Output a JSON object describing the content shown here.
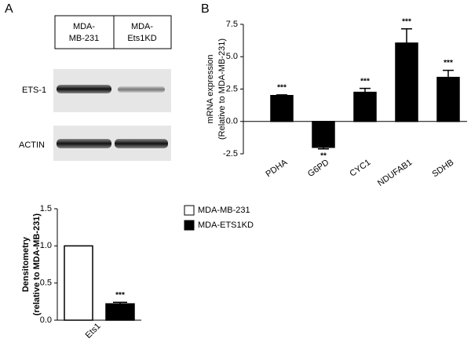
{
  "panel_a": {
    "label": "A",
    "blot": {
      "columns": [
        [
          "MDA-",
          "MB-231"
        ],
        [
          "MDA-",
          "Ets1KD"
        ]
      ],
      "rows": [
        "ETS-1",
        "ACTIN"
      ]
    }
  },
  "panel_b": {
    "label": "B"
  },
  "chart_data": [
    {
      "type": "bar",
      "categories": [
        "Ets1"
      ],
      "ylabel": [
        "Densitometry",
        "(relative to MDA-MB-231)"
      ],
      "series": [
        {
          "name": "MDA-MB-231",
          "color": "#ffffff",
          "values": [
            1.0
          ]
        },
        {
          "name": "MDA-ETS1KD",
          "color": "#000000",
          "values": [
            0.22
          ],
          "errors": [
            0.02
          ],
          "significance": [
            "***"
          ]
        }
      ],
      "ylim": [
        0,
        1.5
      ],
      "yticks": [
        {
          "value": 0,
          "label": "0.0"
        },
        {
          "value": 0.5,
          "label": "0.5"
        },
        {
          "value": 1,
          "label": "1.0"
        },
        {
          "value": 1.5,
          "label": "1.5"
        }
      ],
      "legend": "top-right"
    },
    {
      "type": "bar",
      "categories": [
        "PDHA",
        "G6PD",
        "CYC1",
        "NDUFAB1",
        "SDHB"
      ],
      "ylabel": [
        "mRNA expression",
        "(Relative to MDA-MB-231)"
      ],
      "series": [
        {
          "color": "#000000",
          "values": [
            2.0,
            -2.0,
            2.25,
            6.05,
            3.4
          ],
          "errors": [
            0.05,
            0.12,
            0.3,
            1.1,
            0.55
          ],
          "significance": [
            "***",
            "**",
            "***",
            "***",
            "***"
          ]
        }
      ],
      "ylim": [
        -2.5,
        7.5
      ],
      "yticks": [
        {
          "value": -2.5,
          "label": "-2.5"
        },
        {
          "value": 0,
          "label": "0.0"
        },
        {
          "value": 2.5,
          "label": "2.5"
        },
        {
          "value": 5,
          "label": "5.0"
        },
        {
          "value": 7.5,
          "label": "7.5"
        }
      ]
    }
  ]
}
